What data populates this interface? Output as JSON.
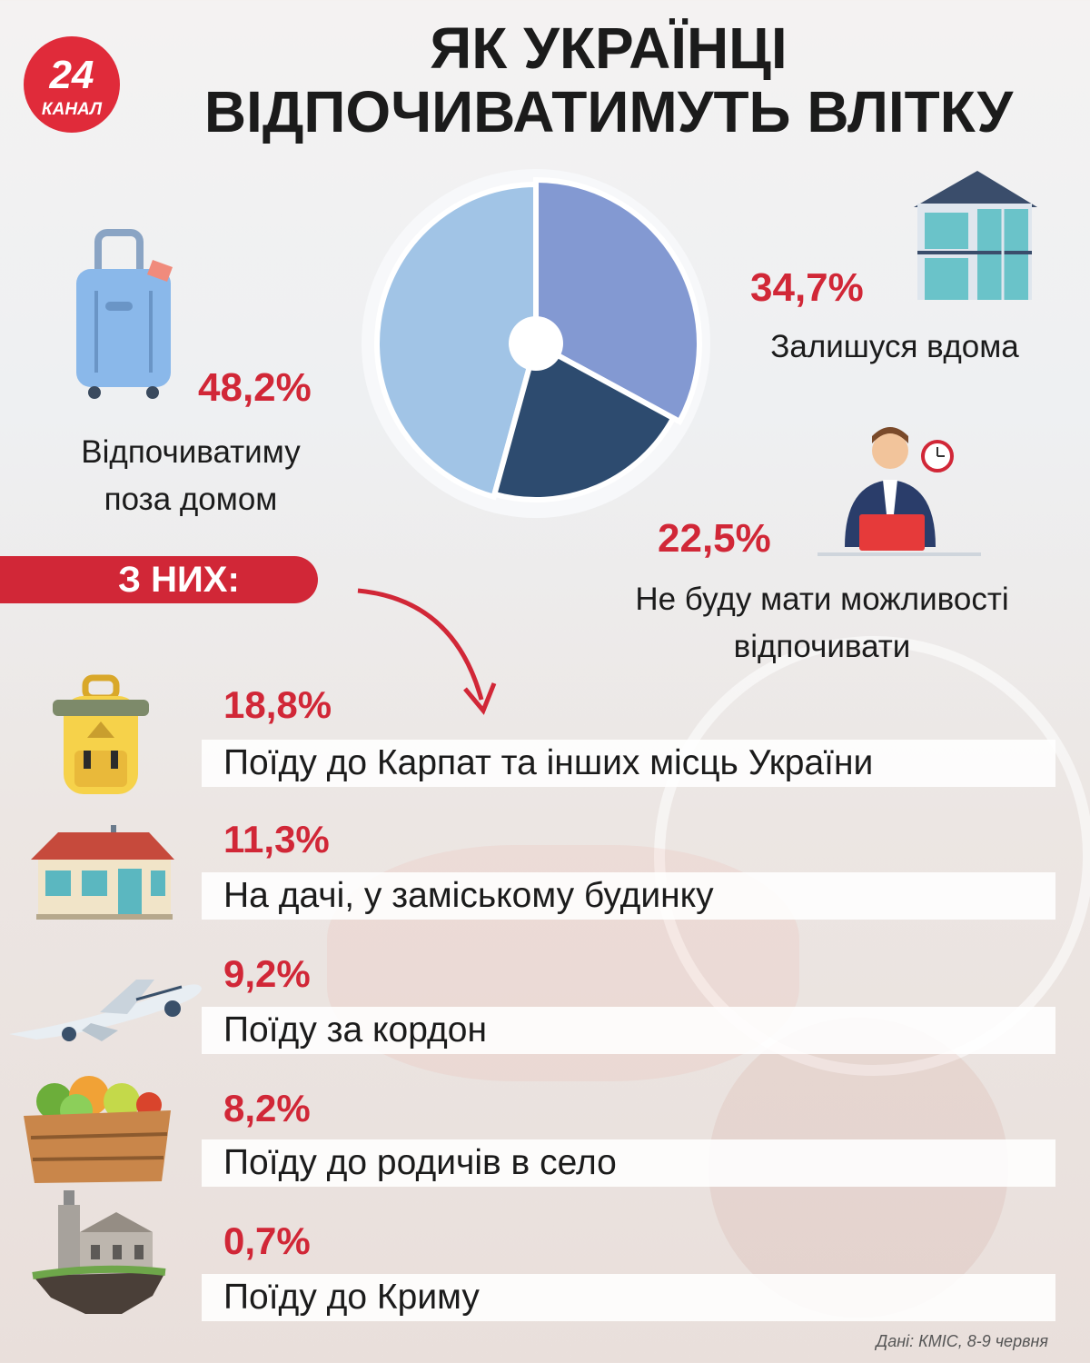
{
  "logo": {
    "number": "24",
    "text": "КАНАЛ"
  },
  "title": {
    "line1": "ЯК УКРАЇНЦІ",
    "line2": "ВІДПОЧИВАТИМУТЬ ВЛІТКУ"
  },
  "chart_data": {
    "type": "pie",
    "categories": [
      "Відпочиватиму поза домом",
      "Залишуся вдома",
      "Не буду мати можливості відпочивати"
    ],
    "values": [
      48.2,
      34.7,
      22.5
    ],
    "value_labels": [
      "48,2%",
      "34,7%",
      "22,5%"
    ],
    "colors": [
      "#a1c4e6",
      "#8399d2",
      "#2d4b6f"
    ]
  },
  "pie_labels": {
    "away": {
      "pct": "48,2%",
      "line1": "Відпочиватиму",
      "line2": "поза домом"
    },
    "home": {
      "pct": "34,7%",
      "line1": "Залишуся вдома"
    },
    "none": {
      "pct": "22,5%",
      "line1": "Не буду мати можливості",
      "line2": "відпочивати"
    }
  },
  "breakdown": {
    "badge": "З НИХ:",
    "items": [
      {
        "pct": "18,8%",
        "label": "Поїду до Карпат та інших місць України",
        "icon": "backpack-icon"
      },
      {
        "pct": "11,3%",
        "label": "На дачі, у заміському будинку",
        "icon": "country-house-icon"
      },
      {
        "pct": "9,2%",
        "label": "Поїду за кордон",
        "icon": "airplane-icon"
      },
      {
        "pct": "8,2%",
        "label": "Поїду до родичів в село",
        "icon": "vegetable-crate-icon"
      },
      {
        "pct": "0,7%",
        "label": "Поїду до Криму",
        "icon": "castle-icon"
      }
    ]
  },
  "source": "Дані: КМІС, 8-9 червня"
}
